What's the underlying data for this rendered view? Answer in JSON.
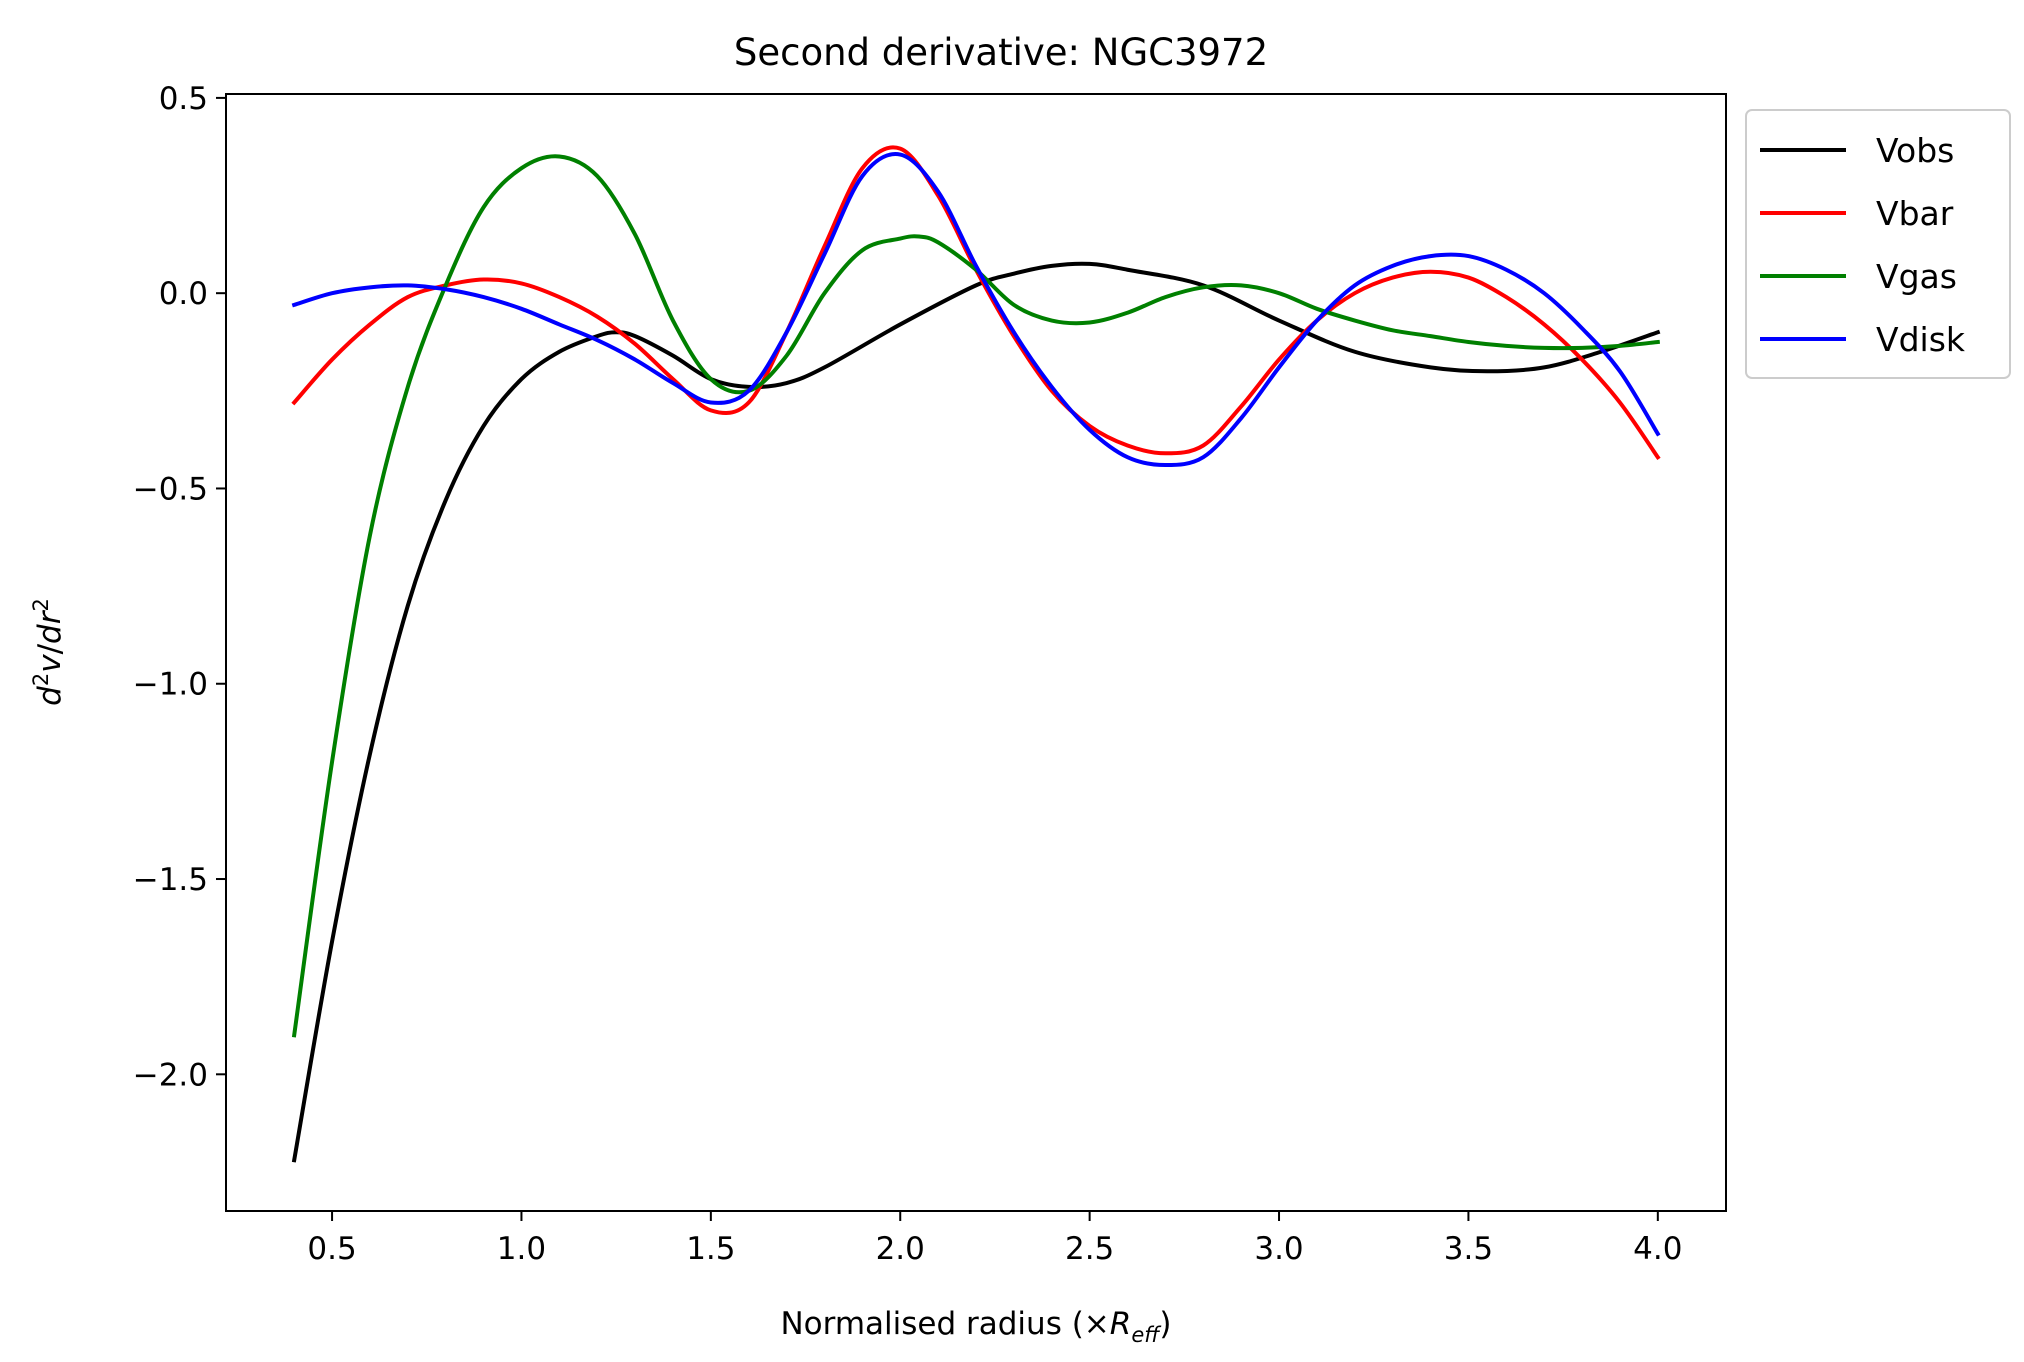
{
  "chart_data": {
    "type": "line",
    "title": "Second derivative: NGC3972",
    "xlabel": "Normalised radius (×R_eff)",
    "ylabel": "d²v/dr²",
    "xlim": [
      0.22,
      4.18
    ],
    "ylim": [
      -2.35,
      0.51
    ],
    "xticks": [
      0.5,
      1.0,
      1.5,
      2.0,
      2.5,
      3.0,
      3.5,
      4.0
    ],
    "xtick_labels": [
      "0.5",
      "1.0",
      "1.5",
      "2.0",
      "2.5",
      "3.0",
      "3.5",
      "4.0"
    ],
    "yticks": [
      0.5,
      0.0,
      -0.5,
      -1.0,
      -1.5,
      -2.0
    ],
    "ytick_labels": [
      "0.5",
      "0.0",
      "−0.5",
      "−1.0",
      "−1.5",
      "−2.0"
    ],
    "grid": false,
    "legend_placement": "outside upper-right",
    "series": [
      {
        "name": "Vobs",
        "color": "#000000",
        "x": [
          0.4,
          0.5,
          0.6,
          0.7,
          0.8,
          0.9,
          1.0,
          1.1,
          1.2,
          1.25,
          1.3,
          1.4,
          1.5,
          1.6,
          1.7,
          1.8,
          2.0,
          2.2,
          2.3,
          2.4,
          2.5,
          2.6,
          2.8,
          3.0,
          3.2,
          3.4,
          3.55,
          3.7,
          3.85,
          4.0
        ],
        "y": [
          -2.22,
          -1.66,
          -1.18,
          -0.8,
          -0.53,
          -0.34,
          -0.22,
          -0.15,
          -0.11,
          -0.1,
          -0.11,
          -0.16,
          -0.22,
          -0.24,
          -0.23,
          -0.19,
          -0.08,
          0.02,
          0.05,
          0.07,
          0.075,
          0.06,
          0.02,
          -0.07,
          -0.15,
          -0.19,
          -0.2,
          -0.19,
          -0.15,
          -0.1
        ]
      },
      {
        "name": "Vbar",
        "color": "#ff0000",
        "x": [
          0.4,
          0.5,
          0.6,
          0.7,
          0.8,
          0.9,
          1.0,
          1.1,
          1.2,
          1.3,
          1.4,
          1.5,
          1.6,
          1.7,
          1.8,
          1.9,
          2.0,
          2.1,
          2.2,
          2.3,
          2.4,
          2.5,
          2.6,
          2.7,
          2.8,
          2.9,
          3.0,
          3.1,
          3.2,
          3.3,
          3.4,
          3.5,
          3.6,
          3.7,
          3.8,
          3.9,
          4.0
        ],
        "y": [
          -0.28,
          -0.17,
          -0.08,
          -0.01,
          0.02,
          0.035,
          0.025,
          -0.01,
          -0.06,
          -0.13,
          -0.22,
          -0.3,
          -0.28,
          -0.1,
          0.12,
          0.32,
          0.37,
          0.25,
          0.06,
          -0.11,
          -0.25,
          -0.34,
          -0.39,
          -0.41,
          -0.39,
          -0.29,
          -0.17,
          -0.07,
          0.0,
          0.04,
          0.055,
          0.04,
          -0.01,
          -0.08,
          -0.17,
          -0.28,
          -0.42
        ]
      },
      {
        "name": "Vgas",
        "color": "#008000",
        "x": [
          0.4,
          0.5,
          0.6,
          0.7,
          0.8,
          0.9,
          1.0,
          1.1,
          1.2,
          1.3,
          1.4,
          1.5,
          1.6,
          1.7,
          1.8,
          1.9,
          2.0,
          2.05,
          2.1,
          2.2,
          2.3,
          2.4,
          2.5,
          2.6,
          2.7,
          2.8,
          2.9,
          3.0,
          3.1,
          3.2,
          3.3,
          3.4,
          3.5,
          3.6,
          3.7,
          3.8,
          3.9,
          4.0
        ],
        "y": [
          -1.9,
          -1.2,
          -0.62,
          -0.24,
          0.02,
          0.22,
          0.32,
          0.35,
          0.3,
          0.15,
          -0.07,
          -0.22,
          -0.25,
          -0.16,
          0.0,
          0.11,
          0.14,
          0.145,
          0.13,
          0.06,
          -0.03,
          -0.07,
          -0.075,
          -0.05,
          -0.01,
          0.015,
          0.02,
          0.0,
          -0.04,
          -0.07,
          -0.095,
          -0.11,
          -0.125,
          -0.135,
          -0.14,
          -0.14,
          -0.135,
          -0.125
        ]
      },
      {
        "name": "Vdisk",
        "color": "#0000ff",
        "x": [
          0.4,
          0.5,
          0.6,
          0.7,
          0.8,
          0.9,
          1.0,
          1.1,
          1.2,
          1.3,
          1.4,
          1.5,
          1.6,
          1.7,
          1.8,
          1.9,
          2.0,
          2.1,
          2.2,
          2.3,
          2.4,
          2.5,
          2.6,
          2.7,
          2.8,
          2.9,
          3.0,
          3.1,
          3.2,
          3.3,
          3.4,
          3.5,
          3.6,
          3.7,
          3.8,
          3.9,
          4.0
        ],
        "y": [
          -0.03,
          0.0,
          0.015,
          0.02,
          0.01,
          -0.01,
          -0.04,
          -0.08,
          -0.12,
          -0.17,
          -0.23,
          -0.28,
          -0.25,
          -0.1,
          0.1,
          0.3,
          0.355,
          0.26,
          0.07,
          -0.1,
          -0.24,
          -0.35,
          -0.42,
          -0.44,
          -0.42,
          -0.32,
          -0.19,
          -0.07,
          0.02,
          0.07,
          0.095,
          0.095,
          0.06,
          0.0,
          -0.09,
          -0.2,
          -0.36
        ]
      }
    ]
  }
}
